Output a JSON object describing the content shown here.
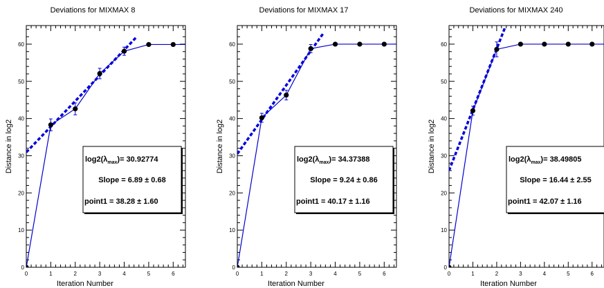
{
  "chart_data": [
    {
      "type": "line",
      "title": "Deviations for MIXMAX 8",
      "xlabel": "Iteration Number",
      "ylabel": "Distance in log2",
      "xlim": [
        0,
        6.5
      ],
      "ylim": [
        0,
        65
      ],
      "xticks": [
        "0",
        "1",
        "2",
        "3",
        "4",
        "5",
        "6"
      ],
      "yticks": [
        "0",
        "10",
        "20",
        "30",
        "40",
        "50",
        "60"
      ],
      "series": [
        {
          "x": [
            0,
            1,
            2,
            3,
            4,
            5,
            6
          ],
          "y": [
            0,
            38.3,
            42.6,
            52.1,
            58.1,
            59.9,
            59.9
          ],
          "err": [
            0,
            1.6,
            1.6,
            1.4,
            1.1,
            0,
            0
          ]
        }
      ],
      "fit": {
        "x": [
          0,
          4.5
        ],
        "y": [
          30.93,
          61.9
        ]
      },
      "stats": {
        "lambda_label": "log2(λ",
        "lambda_sub": "max",
        "lambda_value": ")= 30.92774",
        "slope": "Slope =  6.89 ± 0.68",
        "point1": "point1 = 38.28 ± 1.60"
      },
      "colors": {
        "line": "#0000cc",
        "fit": "#0000e0",
        "marker": "#000000"
      }
    },
    {
      "type": "line",
      "title": "Deviations for MIXMAX 17",
      "xlabel": "Iteration Number",
      "ylabel": "Distance in log2",
      "xlim": [
        0,
        6.5
      ],
      "ylim": [
        0,
        65
      ],
      "xticks": [
        "0",
        "1",
        "2",
        "3",
        "4",
        "5",
        "6"
      ],
      "yticks": [
        "0",
        "10",
        "20",
        "30",
        "40",
        "50",
        "60"
      ],
      "series": [
        {
          "x": [
            0,
            1,
            2,
            3,
            4,
            5,
            6
          ],
          "y": [
            0,
            40.2,
            46.3,
            58.8,
            60,
            60,
            60
          ],
          "err": [
            0,
            1.2,
            1.3,
            1.1,
            0,
            0,
            0
          ]
        }
      ],
      "fit": {
        "x": [
          0,
          3.5
        ],
        "y": [
          30.5,
          62.8
        ]
      },
      "stats": {
        "lambda_label": "log2(λ",
        "lambda_sub": "max",
        "lambda_value": ")= 34.37388",
        "slope": "Slope =  9.24 ± 0.86",
        "point1": "point1 = 40.17 ± 1.16"
      },
      "colors": {
        "line": "#0000cc",
        "fit": "#0000e0",
        "marker": "#000000"
      }
    },
    {
      "type": "line",
      "title": "Deviations for MIXMAX 240",
      "xlabel": "Iteration Number",
      "ylabel": "Distance in log2",
      "xlim": [
        0,
        6.5
      ],
      "ylim": [
        0,
        65
      ],
      "xticks": [
        "0",
        "1",
        "2",
        "3",
        "4",
        "5",
        "6"
      ],
      "yticks": [
        "0",
        "10",
        "20",
        "30",
        "40",
        "50",
        "60"
      ],
      "series": [
        {
          "x": [
            0,
            1,
            2,
            3,
            4,
            5,
            6
          ],
          "y": [
            0,
            42.1,
            58.6,
            60,
            60,
            60,
            60
          ],
          "err": [
            0,
            1.2,
            2.0,
            0,
            0,
            0,
            0
          ]
        }
      ],
      "fit": {
        "x": [
          0,
          2.35
        ],
        "y": [
          26,
          64.5
        ]
      },
      "stats": {
        "lambda_label": "log2(λ",
        "lambda_sub": "max",
        "lambda_value": ")= 38.49805",
        "slope": "Slope = 16.44 ± 2.55",
        "point1": "point1 = 42.07 ± 1.16"
      },
      "colors": {
        "line": "#0000cc",
        "fit": "#0000e0",
        "marker": "#000000"
      }
    }
  ]
}
